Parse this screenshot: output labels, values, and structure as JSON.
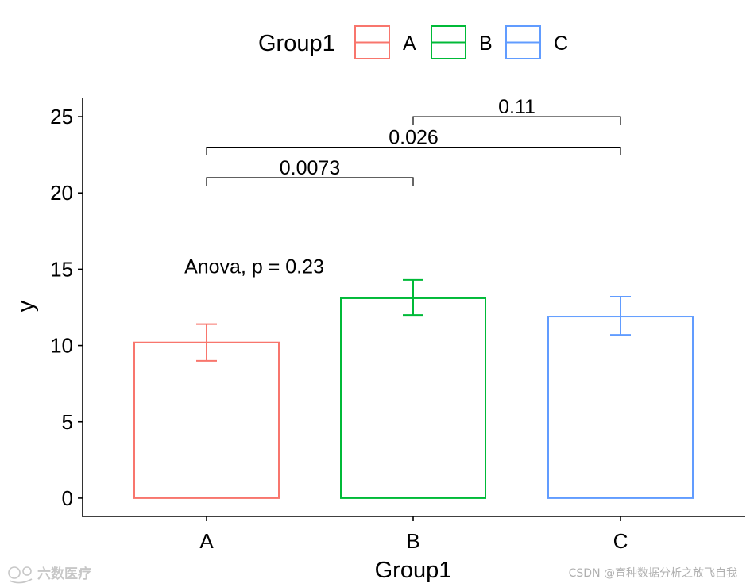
{
  "chart_data": {
    "type": "bar",
    "title": "",
    "xlabel": "Group1",
    "ylabel": "y",
    "ylim": [
      -1.2,
      26.2
    ],
    "yticks": [
      0,
      5,
      10,
      15,
      20,
      25
    ],
    "categories": [
      "A",
      "B",
      "C"
    ],
    "series": [
      {
        "name": "y",
        "values": [
          10.2,
          13.1,
          11.9
        ],
        "error_low": [
          9.0,
          12.0,
          10.7
        ],
        "error_high": [
          11.4,
          14.3,
          13.2
        ],
        "colors": [
          "#F8766D",
          "#00BA38",
          "#619CFF"
        ]
      }
    ],
    "legend": {
      "title": "Group1",
      "position": "top",
      "entries": [
        {
          "label": "A",
          "color": "#F8766D"
        },
        {
          "label": "B",
          "color": "#00BA38"
        },
        {
          "label": "C",
          "color": "#619CFF"
        }
      ]
    },
    "annotations": {
      "global_test": {
        "text": "Anova, p = 0.23",
        "x_category": "A",
        "y": 15.2
      },
      "comparisons": [
        {
          "group1": "A",
          "group2": "B",
          "label": "0.0073",
          "y": 21.0
        },
        {
          "group1": "A",
          "group2": "C",
          "label": "0.026",
          "y": 23.0
        },
        {
          "group1": "B",
          "group2": "C",
          "label": "0.11",
          "y": 25.0
        }
      ]
    }
  },
  "watermarks": {
    "bottom_left": "六数医疗",
    "bottom_right": "CSDN @育种数据分析之放飞自我"
  }
}
